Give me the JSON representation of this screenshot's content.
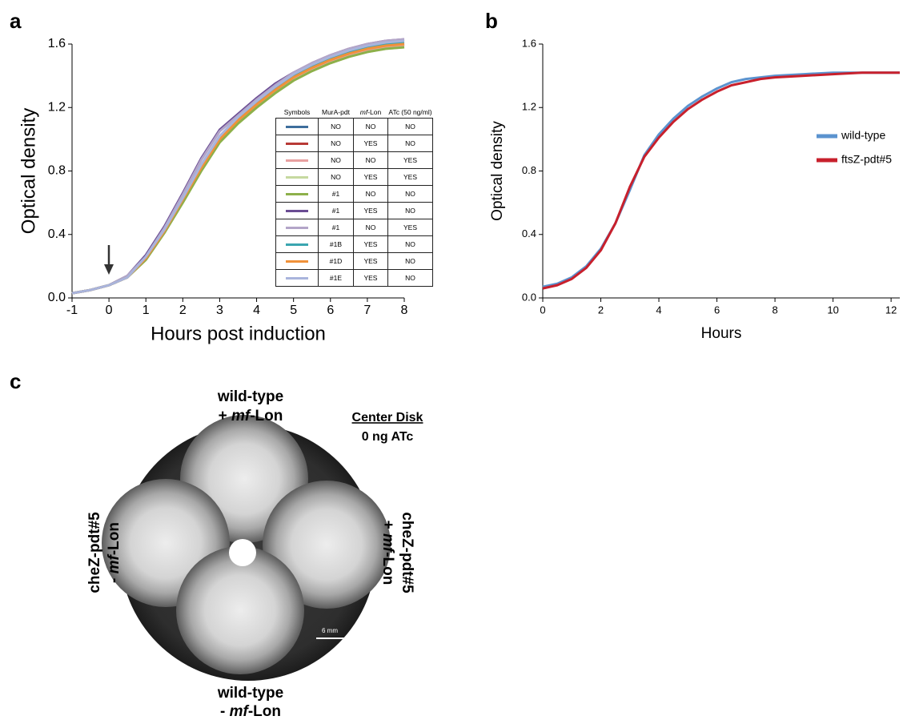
{
  "panel_labels": [
    "a",
    "b",
    "c"
  ],
  "chart_data": [
    {
      "type": "line",
      "x_label": "Hours post induction",
      "y_label": "Optical density",
      "x": [
        -1,
        -0.5,
        0,
        0.5,
        1,
        1.5,
        2,
        2.5,
        3,
        3.5,
        4,
        4.5,
        5,
        5.5,
        6,
        6.5,
        7,
        7.5,
        8
      ],
      "xlim": [
        -1,
        8
      ],
      "xticks": [
        -1,
        0,
        1,
        2,
        3,
        4,
        5,
        6,
        7,
        8
      ],
      "ylim": [
        0,
        1.6
      ],
      "yticks": [
        {
          "value": 0,
          "label": "0.0"
        },
        0.4,
        0.8,
        1.2,
        1.6
      ],
      "series": [
        {
          "color": "#3e6e9c",
          "values": [
            0.03,
            0.05,
            0.08,
            0.13,
            0.25,
            0.42,
            0.62,
            0.82,
            1.0,
            1.12,
            1.22,
            1.31,
            1.39,
            1.45,
            1.5,
            1.54,
            1.57,
            1.59,
            1.6
          ]
        },
        {
          "color": "#b83a36",
          "values": [
            0.03,
            0.05,
            0.08,
            0.13,
            0.25,
            0.42,
            0.62,
            0.82,
            1.0,
            1.12,
            1.22,
            1.31,
            1.39,
            1.45,
            1.5,
            1.54,
            1.57,
            1.59,
            1.6
          ]
        },
        {
          "color": "#e8a0a0",
          "values": [
            0.03,
            0.05,
            0.08,
            0.13,
            0.24,
            0.41,
            0.61,
            0.81,
            0.99,
            1.11,
            1.21,
            1.3,
            1.38,
            1.44,
            1.49,
            1.53,
            1.56,
            1.58,
            1.59
          ]
        },
        {
          "color": "#c6d9a0",
          "values": [
            0.03,
            0.05,
            0.08,
            0.13,
            0.24,
            0.41,
            0.6,
            0.8,
            0.98,
            1.1,
            1.2,
            1.29,
            1.37,
            1.43,
            1.48,
            1.52,
            1.55,
            1.57,
            1.58
          ]
        },
        {
          "color": "#8db04a",
          "values": [
            0.03,
            0.05,
            0.08,
            0.13,
            0.24,
            0.41,
            0.6,
            0.8,
            0.98,
            1.1,
            1.2,
            1.29,
            1.37,
            1.43,
            1.48,
            1.52,
            1.55,
            1.57,
            1.58
          ]
        },
        {
          "color": "#6a4c93",
          "values": [
            0.03,
            0.05,
            0.08,
            0.14,
            0.27,
            0.45,
            0.66,
            0.88,
            1.06,
            1.16,
            1.26,
            1.35,
            1.42,
            1.48,
            1.53,
            1.57,
            1.6,
            1.62,
            1.63
          ]
        },
        {
          "color": "#b3a5c8",
          "values": [
            0.03,
            0.05,
            0.08,
            0.14,
            0.26,
            0.44,
            0.65,
            0.87,
            1.05,
            1.15,
            1.25,
            1.34,
            1.42,
            1.48,
            1.53,
            1.57,
            1.6,
            1.62,
            1.63
          ]
        },
        {
          "color": "#3aa5b0",
          "values": [
            0.03,
            0.05,
            0.08,
            0.13,
            0.25,
            0.42,
            0.62,
            0.83,
            1.01,
            1.13,
            1.23,
            1.32,
            1.4,
            1.46,
            1.51,
            1.55,
            1.58,
            1.6,
            1.61
          ]
        },
        {
          "color": "#f0913a",
          "values": [
            0.03,
            0.05,
            0.08,
            0.13,
            0.25,
            0.42,
            0.62,
            0.82,
            1.0,
            1.12,
            1.22,
            1.31,
            1.39,
            1.45,
            1.5,
            1.54,
            1.57,
            1.59,
            1.6
          ]
        },
        {
          "color": "#a9b4dc",
          "values": [
            0.03,
            0.05,
            0.08,
            0.13,
            0.26,
            0.43,
            0.63,
            0.84,
            1.02,
            1.14,
            1.24,
            1.33,
            1.41,
            1.47,
            1.52,
            1.56,
            1.59,
            1.61,
            1.62
          ]
        }
      ],
      "legend_table": {
        "headers": [
          "Symbols",
          "MurA-pdt",
          [
            "mf",
            "-Lon"
          ],
          "ATc (50 ng/ml)"
        ],
        "rows": [
          [
            "NO",
            "NO",
            "NO"
          ],
          [
            "NO",
            "YES",
            "NO"
          ],
          [
            "NO",
            "NO",
            "YES"
          ],
          [
            "NO",
            "YES",
            "YES"
          ],
          [
            "#1",
            "NO",
            "NO"
          ],
          [
            "#1",
            "YES",
            "NO"
          ],
          [
            "#1",
            "NO",
            "YES"
          ],
          [
            "#1B",
            "YES",
            "NO"
          ],
          [
            "#1D",
            "YES",
            "NO"
          ],
          [
            "#1E",
            "YES",
            "NO"
          ]
        ]
      }
    },
    {
      "type": "line",
      "x_label": "Hours",
      "y_label": "Optical density",
      "x": [
        0,
        0.5,
        1,
        1.5,
        2,
        2.5,
        3,
        3.5,
        4,
        4.5,
        5,
        5.5,
        6,
        6.5,
        7,
        7.5,
        8,
        9,
        10,
        11,
        12.3
      ],
      "xlim": [
        0,
        12.3
      ],
      "xticks": [
        0,
        2,
        4,
        6,
        8,
        10,
        12
      ],
      "ylim": [
        0,
        1.6
      ],
      "yticks": [
        {
          "value": 0,
          "label": "0.0"
        },
        0.4,
        0.8,
        1.2,
        1.6
      ],
      "legend": "right",
      "series": [
        {
          "name": "wild-type",
          "color": "#5b93cf",
          "values": [
            0.07,
            0.09,
            0.13,
            0.2,
            0.31,
            0.47,
            0.68,
            0.9,
            1.03,
            1.13,
            1.21,
            1.27,
            1.32,
            1.36,
            1.38,
            1.39,
            1.4,
            1.41,
            1.42,
            1.42,
            1.42
          ]
        },
        {
          "name": "ftsZ-pdt#5",
          "color": "#c8202c",
          "values": [
            0.06,
            0.08,
            0.12,
            0.19,
            0.3,
            0.47,
            0.7,
            0.89,
            1.01,
            1.11,
            1.19,
            1.25,
            1.3,
            1.34,
            1.36,
            1.38,
            1.39,
            1.4,
            1.41,
            1.42,
            1.42
          ]
        }
      ]
    }
  ],
  "image_panel": {
    "top_label": [
      "wild-type",
      [
        "+ ",
        "mf",
        "-Lon"
      ]
    ],
    "bottom_label": [
      "wild-type",
      [
        "- ",
        "mf",
        "-Lon"
      ]
    ],
    "left_label": [
      "cheZ-pdt#5",
      [
        "- ",
        "mf",
        "-Lon"
      ]
    ],
    "right_label": [
      "cheZ-pdt#5",
      [
        "+ ",
        "mf",
        "-Lon"
      ]
    ],
    "note": [
      "Center Disk",
      "0 ng ATc"
    ],
    "scale_bar": "6 mm"
  }
}
